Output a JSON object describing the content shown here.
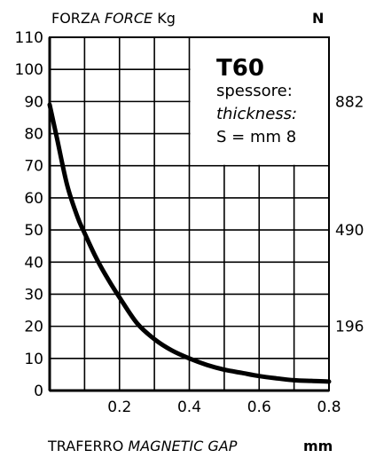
{
  "chart_data": {
    "type": "line",
    "title": "",
    "ylabel_left_prefix": "FORZA",
    "ylabel_left_italic": "FORCE",
    "ylabel_left_unit": "Kg",
    "ylabel_right_unit": "N",
    "xlabel_prefix": "TRAFERRO",
    "xlabel_italic": "MAGNETIC GAP",
    "xlabel_unit": "mm",
    "xlim": [
      0,
      0.8
    ],
    "ylim": [
      0,
      110
    ],
    "x_ticks": [
      0.2,
      0.4,
      0.6,
      0.8
    ],
    "x_tick_labels": [
      "0.2",
      "0.4",
      "0.6",
      "0.8"
    ],
    "y_ticks": [
      0,
      10,
      20,
      30,
      40,
      50,
      60,
      70,
      80,
      90,
      100,
      110
    ],
    "y_tick_labels": [
      "0",
      "10",
      "20",
      "30",
      "40",
      "50",
      "60",
      "70",
      "80",
      "90",
      "100",
      "110"
    ],
    "right_ticks": [
      {
        "label": "882",
        "y": 90
      },
      {
        "label": "490",
        "y": 50
      },
      {
        "label": "196",
        "y": 20
      }
    ],
    "grid": true,
    "series": [
      {
        "x": [
          0.0,
          0.02,
          0.05,
          0.08,
          0.1,
          0.13,
          0.16,
          0.2,
          0.25,
          0.3,
          0.35,
          0.4,
          0.45,
          0.5,
          0.55,
          0.6,
          0.65,
          0.7,
          0.75,
          0.8
        ],
        "y": [
          89,
          79,
          64,
          54,
          49,
          42,
          36,
          29,
          21,
          16,
          12.5,
          10,
          8,
          6.5,
          5.5,
          4.5,
          3.8,
          3.2,
          3,
          2.8
        ],
        "color": "#000000"
      }
    ],
    "annotation": {
      "model": "T60",
      "line1": "spessore:",
      "line2": "thickness:",
      "line3": "S = mm 8"
    }
  }
}
